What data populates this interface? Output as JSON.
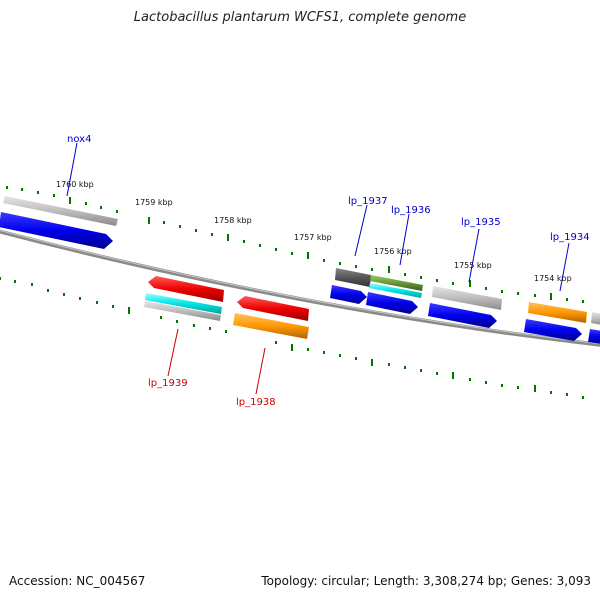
{
  "title": "Lactobacillus plantarum WCFS1, complete genome",
  "accession": "Accession: NC_004567",
  "summary": "Topology: circular; Length: 3,308,274 bp; Genes: 3,093",
  "scale_labels": [
    "1760 kbp",
    "1759 kbp",
    "1758 kbp",
    "1757 kbp",
    "1756 kbp",
    "1755 kbp",
    "1754 kbp"
  ],
  "gene_labels": {
    "nox4": "nox4",
    "lp_1937": "lp_1937",
    "lp_1936": "lp_1936",
    "lp_1935": "lp_1935",
    "lp_1934": "lp_1934",
    "lp_1939": "lp_1939",
    "lp_1938": "lp_1938"
  },
  "colors": {
    "forward_label": "#0000cc",
    "reverse_label": "#cc0000",
    "tick": "#007700",
    "backbone": "#777777",
    "cds": "#0000ee",
    "gene": "#bbbbbb",
    "rrna_red": "#ee0000",
    "cyan": "#00e5e5",
    "orange": "#ff9900",
    "olive": "#669933",
    "dark": "#555555"
  }
}
